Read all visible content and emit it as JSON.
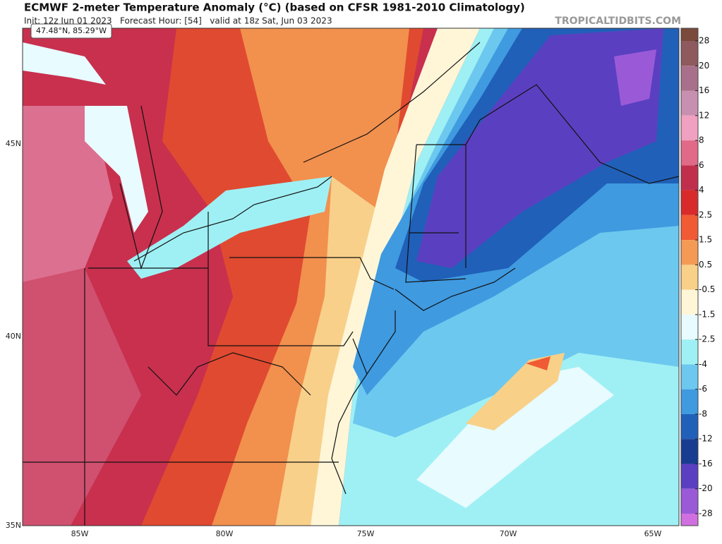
{
  "header": {
    "title": "ECMWF 2-meter Temperature Anomaly (°C) (based on CFSR 1981-2010 Climatology)",
    "subtitle": "Init: 12z Jun 01 2023   Forecast Hour: [54]   valid at 18z Sat, Jun 03 2023",
    "site": "TROPICALTIDBITS.COM"
  },
  "tooltip": "47.48°N, 85.29°W",
  "map": {
    "lat_labels": [
      "45N",
      "40N",
      "35N"
    ],
    "lon_labels": [
      "85W",
      "80W",
      "75W",
      "70W",
      "65W"
    ]
  },
  "colorbar": {
    "labels": [
      28,
      20,
      16,
      12,
      8,
      6,
      4,
      2.5,
      1.5,
      0.5,
      -0.5,
      -1.5,
      -2.5,
      -4,
      -6,
      -8,
      -12,
      -16,
      -20,
      -28
    ],
    "colors": [
      "#7a4a3c",
      "#8e5a5e",
      "#a8708a",
      "#c890b0",
      "#f0a0c0",
      "#e06a88",
      "#c0304c",
      "#d82a2a",
      "#f05a34",
      "#f49a55",
      "#f8d088",
      "#fff6d8",
      "#e8fbff",
      "#9ff0f4",
      "#6cc8ee",
      "#3f9ae0",
      "#2060b8",
      "#183c90",
      "#5a40c0",
      "#9a5ad8",
      "#d070e0"
    ]
  }
}
